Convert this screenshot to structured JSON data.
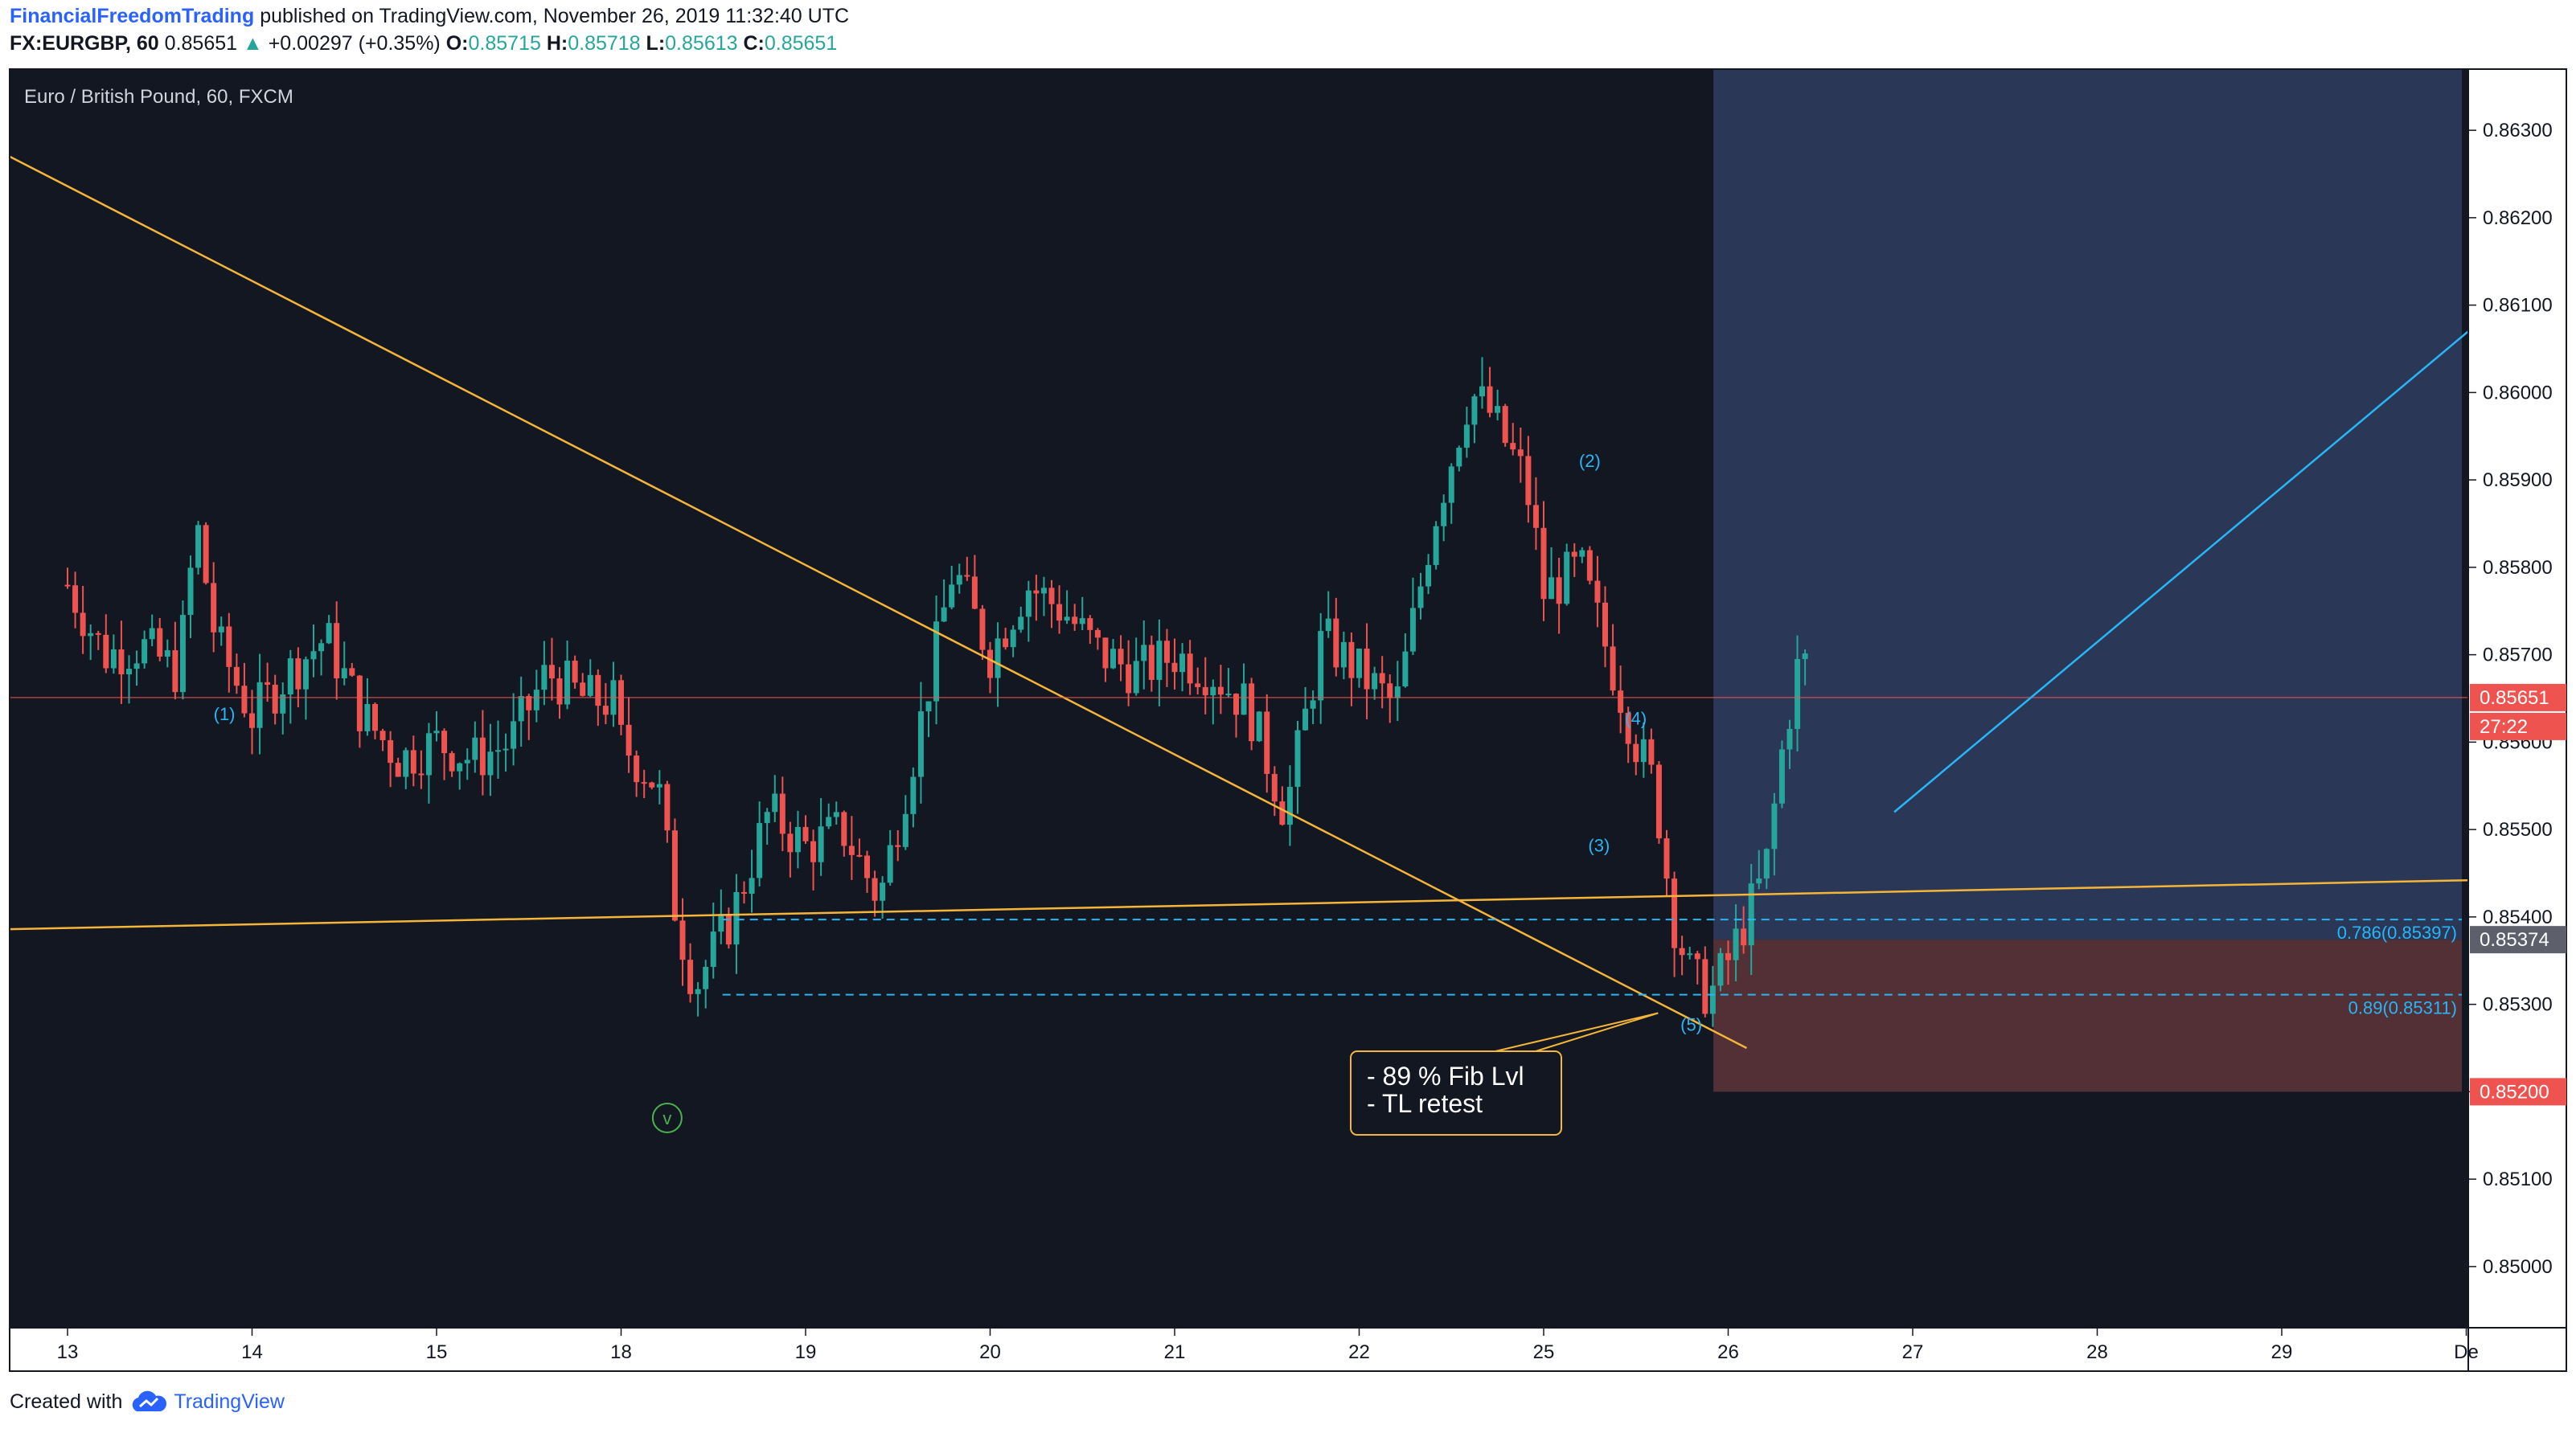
{
  "header": {
    "author": "FinancialFreedomTrading",
    "published_text": "published on TradingView.com, November 26, 2019 11:32:40 UTC",
    "symbol": "FX:EURGBP, 60",
    "last": "0.85651",
    "change_arrow": "▲",
    "change": "+0.00297 (+0.35%)",
    "o_label": "O:",
    "o": "0.85715",
    "h_label": "H:",
    "h": "0.85718",
    "l_label": "L:",
    "l": "0.85613",
    "c_label": "C:",
    "c": "0.85651"
  },
  "footer": {
    "created_with": "Created with",
    "brand": "TradingView",
    "logo_icon": "tradingview-cloud-icon"
  },
  "colors": {
    "background": "#131722",
    "up": "#26a69a",
    "down": "#ef5350",
    "trendline": "#f5b53a",
    "fib": "#29b6f6",
    "target_zone": "#2d3b5c",
    "stop_zone": "#5b3239"
  },
  "chart_data": {
    "type": "candlestick",
    "title": "Euro / British Pound, 60, FXCM",
    "x_ticks": [
      "13",
      "14",
      "15",
      "18",
      "19",
      "20",
      "21",
      "22",
      "25",
      "26",
      "27",
      "28",
      "29",
      "De"
    ],
    "y_ticks": [
      "0.86300",
      "0.86200",
      "0.86100",
      "0.86000",
      "0.85900",
      "0.85800",
      "0.85700",
      "0.85600",
      "0.85500",
      "0.85400",
      "0.85300",
      "0.85200",
      "0.85100",
      "0.85000"
    ],
    "ylim": [
      0.8493,
      0.8637
    ],
    "current_price": "0.85651",
    "countdown": "27:22",
    "price_labels": {
      "entry": "0.85374",
      "stop": "0.85200"
    },
    "fib_levels": [
      {
        "label": "0.786(0.85397)",
        "price": 0.85397
      },
      {
        "label": "0.89(0.85311)",
        "price": 0.85311
      }
    ],
    "wave_labels": [
      {
        "label": "(1)",
        "day": 24.85,
        "price": 0.85625
      },
      {
        "label": "(2)",
        "day": 25.25,
        "price": 0.85915
      },
      {
        "label": "(3)",
        "day": 25.3,
        "price": 0.85475
      },
      {
        "label": "(4)",
        "day": 25.5,
        "price": 0.8562
      },
      {
        "label": "(5)",
        "day": 25.8,
        "price": 0.8527
      }
    ],
    "annotation_lines": [
      "- 89 % Fib Lvl",
      "- TL retest"
    ],
    "v_marker": "v",
    "trend_points": [
      [
        13,
        0.8578
      ],
      [
        13.2,
        0.857
      ],
      [
        13.4,
        0.8571
      ],
      [
        13.6,
        0.8568
      ],
      [
        13.7,
        0.8585
      ],
      [
        13.8,
        0.8572
      ],
      [
        14.0,
        0.8563
      ],
      [
        14.2,
        0.8568
      ],
      [
        14.4,
        0.8572
      ],
      [
        14.6,
        0.8563
      ],
      [
        14.8,
        0.8558
      ],
      [
        15.0,
        0.856
      ],
      [
        15.2,
        0.8558
      ],
      [
        15.4,
        0.856
      ],
      [
        15.6,
        0.8568
      ],
      [
        15.8,
        0.8565
      ],
      [
        18.0,
        0.856
      ],
      [
        18.2,
        0.8555
      ],
      [
        18.3,
        0.854
      ],
      [
        18.4,
        0.8532
      ],
      [
        18.6,
        0.854
      ],
      [
        18.8,
        0.8552
      ],
      [
        19.0,
        0.8548
      ],
      [
        19.2,
        0.855
      ],
      [
        19.4,
        0.8542
      ],
      [
        19.6,
        0.856
      ],
      [
        19.8,
        0.858
      ],
      [
        20.0,
        0.857
      ],
      [
        20.2,
        0.8578
      ],
      [
        20.4,
        0.8575
      ],
      [
        20.6,
        0.857
      ],
      [
        20.8,
        0.8568
      ],
      [
        21.0,
        0.857
      ],
      [
        21.2,
        0.8568
      ],
      [
        21.4,
        0.8564
      ],
      [
        21.6,
        0.8552
      ],
      [
        21.8,
        0.8572
      ],
      [
        22.0,
        0.8568
      ],
      [
        22.2,
        0.8564
      ],
      [
        22.4,
        0.8585
      ],
      [
        22.6,
        0.86
      ],
      [
        22.7,
        0.8598
      ],
      [
        22.9,
        0.859
      ],
      [
        23.0,
        0.8578
      ],
      [
        24.9,
        0.8574
      ],
      [
        25.0,
        0.8577
      ],
      [
        25.2,
        0.858
      ],
      [
        25.35,
        0.857
      ],
      [
        25.5,
        0.856
      ],
      [
        25.6,
        0.8555
      ],
      [
        25.7,
        0.854
      ],
      [
        25.8,
        0.8533
      ],
      [
        25.9,
        0.8531
      ],
      [
        26.0,
        0.8535
      ],
      [
        26.1,
        0.854
      ],
      [
        26.2,
        0.8545
      ],
      [
        26.3,
        0.856
      ],
      [
        26.4,
        0.8571
      ],
      [
        26.45,
        0.8565
      ]
    ]
  }
}
